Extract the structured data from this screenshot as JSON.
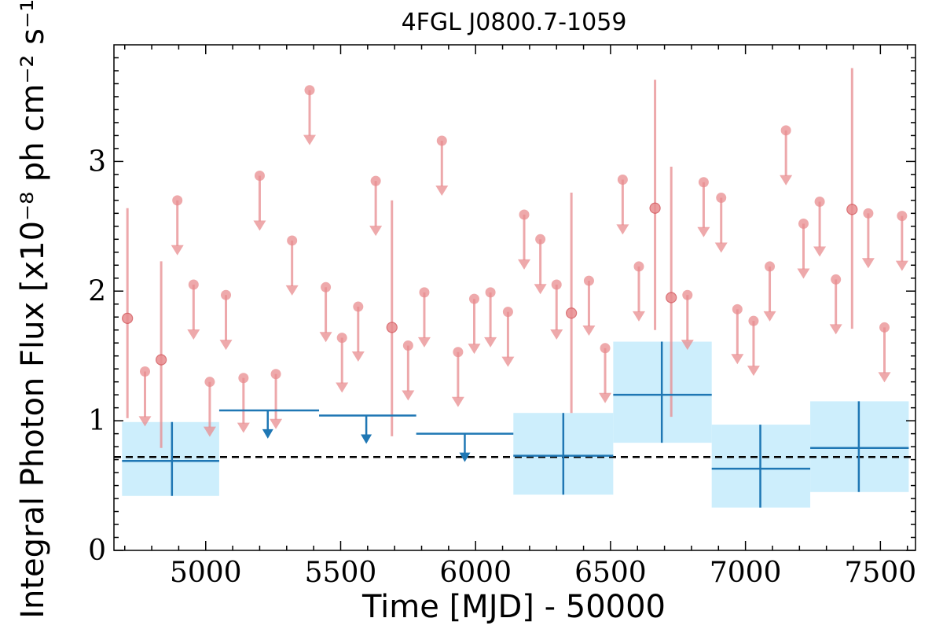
{
  "chart_data": {
    "type": "scatter",
    "title": "4FGL J0800.7-1059",
    "xlabel": "Time [MJD] - 50000",
    "ylabel": "Integral Photon Flux [x10⁻⁸ ph cm⁻² s⁻¹]",
    "xlim": [
      4660,
      7630
    ],
    "ylim": [
      0,
      3.9
    ],
    "xticks": [
      5000,
      5500,
      6000,
      6500,
      7000,
      7500
    ],
    "yticks": [
      0,
      1,
      2,
      3
    ],
    "grid": false,
    "reference_line": {
      "y": 0.72,
      "style": "dashed",
      "color": "#000000"
    },
    "colors": {
      "fine": "#e88c8f",
      "coarse": "#1f77b4",
      "band": "#cdeefc"
    },
    "fine_bin_series": {
      "detections": [
        {
          "x": 4710,
          "y": 1.79,
          "lo": 1.02,
          "hi": 2.64
        },
        {
          "x": 4835,
          "y": 1.47,
          "lo": 0.79,
          "hi": 2.23
        },
        {
          "x": 5690,
          "y": 1.72,
          "lo": 0.88,
          "hi": 2.7
        },
        {
          "x": 6355,
          "y": 1.83,
          "lo": 1.06,
          "hi": 2.76
        },
        {
          "x": 6665,
          "y": 2.64,
          "lo": 1.7,
          "hi": 3.63
        },
        {
          "x": 6725,
          "y": 1.95,
          "lo": 1.03,
          "hi": 2.96
        },
        {
          "x": 7395,
          "y": 2.63,
          "lo": 1.71,
          "hi": 3.72
        }
      ],
      "upper_limits": [
        {
          "x": 4775,
          "y": 1.38
        },
        {
          "x": 4895,
          "y": 2.7
        },
        {
          "x": 4955,
          "y": 2.05
        },
        {
          "x": 5015,
          "y": 1.3
        },
        {
          "x": 5075,
          "y": 1.97
        },
        {
          "x": 5140,
          "y": 1.33
        },
        {
          "x": 5200,
          "y": 2.89
        },
        {
          "x": 5260,
          "y": 1.36
        },
        {
          "x": 5320,
          "y": 2.39
        },
        {
          "x": 5385,
          "y": 3.55
        },
        {
          "x": 5445,
          "y": 2.03
        },
        {
          "x": 5505,
          "y": 1.64
        },
        {
          "x": 5565,
          "y": 1.88
        },
        {
          "x": 5630,
          "y": 2.85
        },
        {
          "x": 5750,
          "y": 1.58
        },
        {
          "x": 5810,
          "y": 1.99
        },
        {
          "x": 5875,
          "y": 3.16
        },
        {
          "x": 5935,
          "y": 1.53
        },
        {
          "x": 5995,
          "y": 1.94
        },
        {
          "x": 6055,
          "y": 1.99
        },
        {
          "x": 6120,
          "y": 1.84
        },
        {
          "x": 6180,
          "y": 2.59
        },
        {
          "x": 6240,
          "y": 2.4
        },
        {
          "x": 6300,
          "y": 2.05
        },
        {
          "x": 6420,
          "y": 2.08
        },
        {
          "x": 6480,
          "y": 1.56
        },
        {
          "x": 6545,
          "y": 2.86
        },
        {
          "x": 6605,
          "y": 2.19
        },
        {
          "x": 6785,
          "y": 1.97
        },
        {
          "x": 6845,
          "y": 2.84
        },
        {
          "x": 6910,
          "y": 2.72
        },
        {
          "x": 6970,
          "y": 1.86
        },
        {
          "x": 7030,
          "y": 1.77
        },
        {
          "x": 7090,
          "y": 2.19
        },
        {
          "x": 7150,
          "y": 3.24
        },
        {
          "x": 7215,
          "y": 2.52
        },
        {
          "x": 7275,
          "y": 2.69
        },
        {
          "x": 7335,
          "y": 2.09
        },
        {
          "x": 7455,
          "y": 2.6
        },
        {
          "x": 7515,
          "y": 1.72
        },
        {
          "x": 7580,
          "y": 2.58
        }
      ],
      "ul_arrow_length": 0.4
    },
    "coarse_bin_series": {
      "detections": [
        {
          "x0": 4690,
          "x1": 5050,
          "xc": 4875,
          "y": 0.69,
          "lo": 0.42,
          "hi": 0.99
        },
        {
          "x0": 6140,
          "x1": 6510,
          "xc": 6325,
          "y": 0.73,
          "lo": 0.43,
          "hi": 1.06
        },
        {
          "x0": 6510,
          "x1": 6875,
          "xc": 6690,
          "y": 1.2,
          "lo": 0.83,
          "hi": 1.61
        },
        {
          "x0": 6875,
          "x1": 7240,
          "xc": 7055,
          "y": 0.63,
          "lo": 0.33,
          "hi": 0.97
        },
        {
          "x0": 7240,
          "x1": 7605,
          "xc": 7420,
          "y": 0.79,
          "lo": 0.45,
          "hi": 1.15
        }
      ],
      "upper_limits": [
        {
          "x0": 5050,
          "x1": 5420,
          "xc": 5230,
          "y": 1.08
        },
        {
          "x0": 5420,
          "x1": 5780,
          "xc": 5595,
          "y": 1.04
        },
        {
          "x0": 5780,
          "x1": 6140,
          "xc": 5960,
          "y": 0.9
        }
      ],
      "ul_arrow_length": 0.2
    }
  }
}
